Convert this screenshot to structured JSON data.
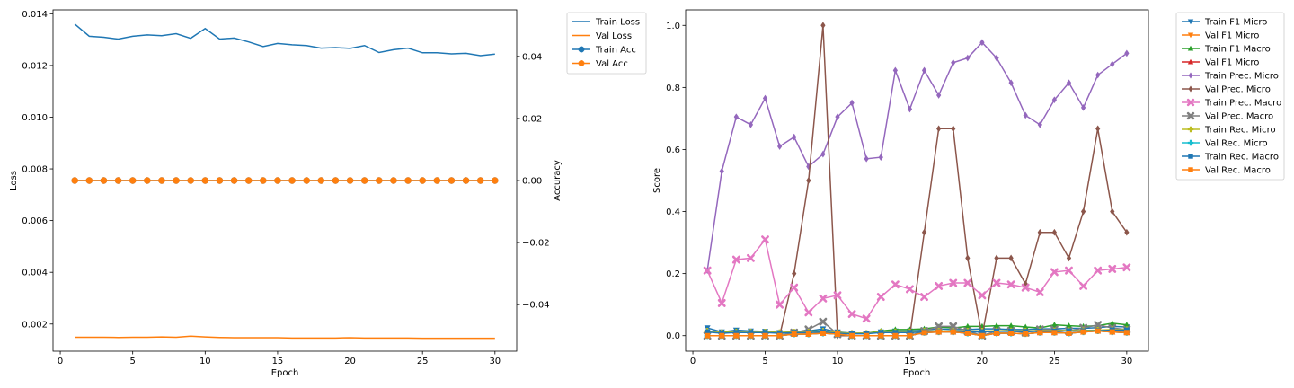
{
  "chart_data": [
    {
      "type": "line",
      "title": "",
      "xlabel": "Epoch",
      "ylabel": "Loss",
      "y2label": "Accuracy",
      "xlim": [
        -0.5,
        31.5
      ],
      "ylim": [
        0.00095,
        0.01415
      ],
      "y2lim": [
        -0.055,
        0.055
      ],
      "xticks": [
        0,
        5,
        10,
        15,
        20,
        25,
        30
      ],
      "yticks": [
        0.002,
        0.004,
        0.006,
        0.008,
        0.01,
        0.012,
        0.014
      ],
      "ytick_labels": [
        "0.002",
        "0.004",
        "0.006",
        "0.008",
        "0.010",
        "0.012",
        "0.014"
      ],
      "y2ticks": [
        -0.04,
        -0.02,
        0.0,
        0.02,
        0.04
      ],
      "y2tick_labels": [
        "−0.04",
        "−0.02",
        "0.00",
        "0.02",
        "0.04"
      ],
      "grid": false,
      "legend_placement": "outside-right-top",
      "x": [
        1,
        2,
        3,
        4,
        5,
        6,
        7,
        8,
        9,
        10,
        11,
        12,
        13,
        14,
        15,
        16,
        17,
        18,
        19,
        20,
        21,
        22,
        23,
        24,
        25,
        26,
        27,
        28,
        29,
        30
      ],
      "series": [
        {
          "name": "Train Loss",
          "axis": "left",
          "color": "#1f77b4",
          "marker": "none",
          "values": [
            0.0136,
            0.01313,
            0.01309,
            0.01302,
            0.01313,
            0.01318,
            0.01315,
            0.01323,
            0.01305,
            0.01343,
            0.01302,
            0.01306,
            0.01291,
            0.01273,
            0.01285,
            0.0128,
            0.01277,
            0.01267,
            0.01269,
            0.01266,
            0.01277,
            0.0125,
            0.01261,
            0.01267,
            0.01249,
            0.01249,
            0.01245,
            0.01247,
            0.01238,
            0.01244
          ]
        },
        {
          "name": "Val Loss",
          "axis": "left",
          "color": "#ff7f0e",
          "marker": "none",
          "values": [
            0.00149,
            0.00149,
            0.00149,
            0.00148,
            0.00149,
            0.00149,
            0.0015,
            0.00149,
            0.00153,
            0.0015,
            0.00148,
            0.00147,
            0.00147,
            0.00147,
            0.00147,
            0.00146,
            0.00146,
            0.00146,
            0.00146,
            0.00147,
            0.00146,
            0.00146,
            0.00146,
            0.00146,
            0.00145,
            0.00145,
            0.00145,
            0.00145,
            0.00145,
            0.00145
          ]
        },
        {
          "name": "Train Acc",
          "axis": "right",
          "color": "#1f77b4",
          "marker": "circle",
          "values": [
            0,
            0,
            0,
            0,
            0,
            0,
            0,
            0,
            0,
            0,
            0,
            0,
            0,
            0,
            0,
            0,
            0,
            0,
            0,
            0,
            0,
            0,
            0,
            0,
            0,
            0,
            0,
            0,
            0,
            0
          ]
        },
        {
          "name": "Val Acc",
          "axis": "right",
          "color": "#ff7f0e",
          "marker": "circle",
          "values": [
            0,
            0,
            0,
            0,
            0,
            0,
            0,
            0,
            0,
            0,
            0,
            0,
            0,
            0,
            0,
            0,
            0,
            0,
            0,
            0,
            0,
            0,
            0,
            0,
            0,
            0,
            0,
            0,
            0,
            0
          ]
        }
      ]
    },
    {
      "type": "line",
      "title": "",
      "xlabel": "Epoch",
      "ylabel": "Score",
      "xlim": [
        -0.5,
        31.5
      ],
      "ylim": [
        -0.05,
        1.05
      ],
      "xticks": [
        0,
        5,
        10,
        15,
        20,
        25,
        30
      ],
      "yticks": [
        0.0,
        0.2,
        0.4,
        0.6,
        0.8,
        1.0
      ],
      "ytick_labels": [
        "0.0",
        "0.2",
        "0.4",
        "0.6",
        "0.8",
        "1.0"
      ],
      "grid": false,
      "legend_placement": "outside-right-top",
      "x": [
        1,
        2,
        3,
        4,
        5,
        6,
        7,
        8,
        9,
        10,
        11,
        12,
        13,
        14,
        15,
        16,
        17,
        18,
        19,
        20,
        21,
        22,
        23,
        24,
        25,
        26,
        27,
        28,
        29,
        30
      ],
      "series": [
        {
          "name": "Train F1 Micro",
          "color": "#1f77b4",
          "marker": "triangle-down",
          "values": [
            0.025,
            0.012,
            0.018,
            0.015,
            0.014,
            0.01,
            0.012,
            0.015,
            0.022,
            0.012,
            0.008,
            0.008,
            0.012,
            0.015,
            0.015,
            0.018,
            0.022,
            0.02,
            0.02,
            0.022,
            0.022,
            0.02,
            0.02,
            0.022,
            0.022,
            0.024,
            0.024,
            0.026,
            0.03,
            0.028
          ]
        },
        {
          "name": "Val F1 Micro",
          "color": "#ff7f0e",
          "marker": "triangle-down",
          "values": [
            0.0,
            0.0,
            0.0,
            0.0,
            0.0,
            0.0,
            0.005,
            0.005,
            0.008,
            0.005,
            0.0,
            0.0,
            0.0,
            0.0,
            0.0,
            0.01,
            0.012,
            0.012,
            0.008,
            0.0,
            0.008,
            0.008,
            0.006,
            0.01,
            0.01,
            0.008,
            0.012,
            0.015,
            0.012,
            0.01
          ]
        },
        {
          "name": "Train F1 Macro",
          "color": "#2ca02c",
          "marker": "triangle-up",
          "values": [
            0.015,
            0.01,
            0.015,
            0.012,
            0.012,
            0.01,
            0.012,
            0.015,
            0.015,
            0.01,
            0.008,
            0.008,
            0.015,
            0.02,
            0.02,
            0.022,
            0.028,
            0.025,
            0.03,
            0.03,
            0.032,
            0.032,
            0.028,
            0.025,
            0.035,
            0.032,
            0.03,
            0.032,
            0.04,
            0.035
          ]
        },
        {
          "name": "Val F1 Micro",
          "color": "#d62728",
          "marker": "triangle-up",
          "values": [
            0.0,
            0.0,
            0.0,
            0.0,
            0.0,
            0.0,
            0.005,
            0.005,
            0.008,
            0.005,
            0.0,
            0.0,
            0.0,
            0.0,
            0.0,
            0.01,
            0.012,
            0.012,
            0.008,
            0.0,
            0.008,
            0.008,
            0.006,
            0.01,
            0.01,
            0.008,
            0.012,
            0.015,
            0.012,
            0.01
          ]
        },
        {
          "name": "Train Prec. Micro",
          "color": "#9467bd",
          "marker": "diamond",
          "values": [
            0.21,
            0.53,
            0.705,
            0.68,
            0.765,
            0.61,
            0.64,
            0.545,
            0.585,
            0.705,
            0.75,
            0.57,
            0.575,
            0.855,
            0.73,
            0.855,
            0.775,
            0.88,
            0.895,
            0.945,
            0.895,
            0.815,
            0.71,
            0.68,
            0.76,
            0.815,
            0.735,
            0.84,
            0.875,
            0.91
          ]
        },
        {
          "name": "Val Prec. Micro",
          "color": "#8c564b",
          "marker": "diamond",
          "values": [
            0.0,
            0.0,
            0.0,
            0.0,
            0.0,
            0.0,
            0.2,
            0.5,
            1.0,
            0.0,
            0.0,
            0.0,
            0.0,
            0.0,
            0.0,
            0.333,
            0.667,
            0.667,
            0.25,
            0.0,
            0.25,
            0.25,
            0.167,
            0.333,
            0.333,
            0.25,
            0.4,
            0.667,
            0.4,
            0.333
          ]
        },
        {
          "name": "Train Prec. Macro",
          "color": "#e377c2",
          "marker": "x",
          "values": [
            0.21,
            0.105,
            0.245,
            0.25,
            0.31,
            0.1,
            0.155,
            0.075,
            0.12,
            0.13,
            0.07,
            0.055,
            0.125,
            0.165,
            0.15,
            0.125,
            0.16,
            0.17,
            0.17,
            0.13,
            0.17,
            0.165,
            0.155,
            0.14,
            0.205,
            0.21,
            0.16,
            0.21,
            0.215,
            0.22
          ]
        },
        {
          "name": "Val Prec. Macro",
          "color": "#7f7f7f",
          "marker": "x",
          "values": [
            0.0,
            0.0,
            0.0,
            0.0,
            0.0,
            0.0,
            0.01,
            0.02,
            0.045,
            0.005,
            0.0,
            0.0,
            0.0,
            0.0,
            0.0,
            0.015,
            0.03,
            0.03,
            0.015,
            0.0,
            0.015,
            0.015,
            0.01,
            0.02,
            0.02,
            0.015,
            0.025,
            0.035,
            0.025,
            0.02
          ]
        },
        {
          "name": "Train Rec. Micro",
          "color": "#bcbd22",
          "marker": "plus",
          "values": [
            0.015,
            0.01,
            0.012,
            0.012,
            0.012,
            0.01,
            0.012,
            0.012,
            0.015,
            0.01,
            0.008,
            0.008,
            0.012,
            0.012,
            0.012,
            0.015,
            0.015,
            0.015,
            0.015,
            0.015,
            0.016,
            0.016,
            0.015,
            0.016,
            0.016,
            0.017,
            0.017,
            0.018,
            0.02,
            0.02
          ]
        },
        {
          "name": "Val Rec. Micro",
          "color": "#17becf",
          "marker": "plus",
          "values": [
            0.0,
            0.0,
            0.0,
            0.0,
            0.0,
            0.0,
            0.005,
            0.005,
            0.008,
            0.005,
            0.0,
            0.0,
            0.0,
            0.0,
            0.0,
            0.01,
            0.012,
            0.012,
            0.008,
            0.0,
            0.008,
            0.008,
            0.006,
            0.01,
            0.01,
            0.008,
            0.012,
            0.015,
            0.012,
            0.01
          ]
        },
        {
          "name": "Train Rec. Macro",
          "color": "#1f77b4",
          "marker": "square",
          "values": [
            0.012,
            0.008,
            0.01,
            0.01,
            0.01,
            0.008,
            0.01,
            0.01,
            0.012,
            0.008,
            0.006,
            0.006,
            0.01,
            0.01,
            0.01,
            0.012,
            0.012,
            0.012,
            0.012,
            0.012,
            0.014,
            0.014,
            0.013,
            0.014,
            0.014,
            0.015,
            0.015,
            0.016,
            0.018,
            0.018
          ]
        },
        {
          "name": "Val Rec. Macro",
          "color": "#ff7f0e",
          "marker": "square",
          "values": [
            0.0,
            0.0,
            0.0,
            0.0,
            0.0,
            0.0,
            0.005,
            0.005,
            0.008,
            0.005,
            0.0,
            0.0,
            0.0,
            0.0,
            0.0,
            0.01,
            0.012,
            0.012,
            0.008,
            0.0,
            0.008,
            0.008,
            0.006,
            0.01,
            0.01,
            0.008,
            0.012,
            0.015,
            0.012,
            0.01
          ]
        }
      ]
    }
  ]
}
